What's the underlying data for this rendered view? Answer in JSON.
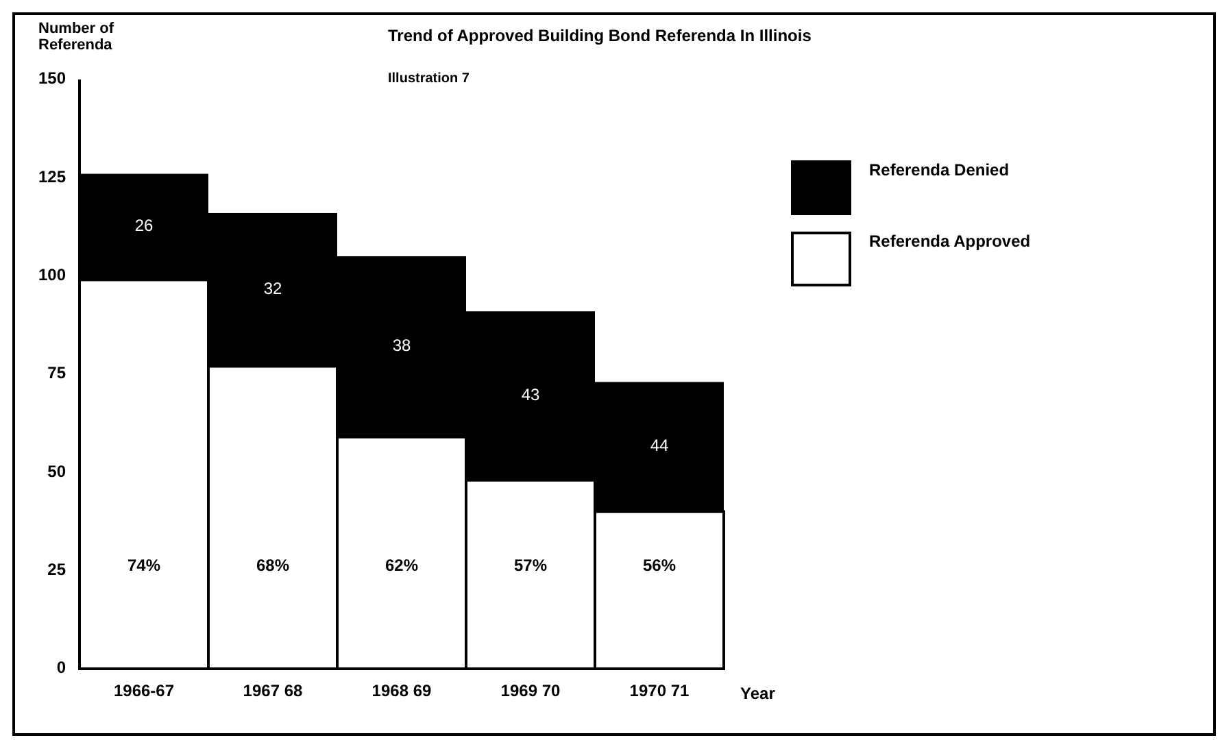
{
  "chart_data": {
    "type": "bar",
    "title": "Trend of Approved Building Bond Referenda In Illinois",
    "ylabel": "Number of Referenda",
    "xlabel": "Year",
    "annotations": [
      "Illustration 7",
      "74%",
      "68%",
      "62%",
      "57%",
      "56%",
      "26",
      "32",
      "38",
      "43",
      "44"
    ],
    "categories": [
      "1966-67",
      "1967 68",
      "1968 69",
      "1969 70",
      "1970 71"
    ],
    "stacked": true,
    "ylim": [
      0,
      150
    ],
    "yticks": [
      0,
      25,
      50,
      75,
      100,
      125,
      150
    ],
    "legend": "top right",
    "series": [
      {
        "name": "Referenda Approved",
        "color": "#ffffff",
        "values": [
          99,
          77,
          59,
          48,
          40
        ]
      },
      {
        "name": "Referenda Denied",
        "color": "#000000",
        "values": [
          27,
          39,
          46,
          43,
          33
        ]
      }
    ]
  }
}
